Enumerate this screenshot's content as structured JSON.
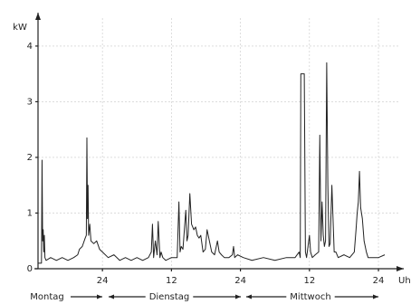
{
  "chart_data": {
    "type": "line",
    "y_label": "kW",
    "x_label": "Uhr",
    "day_labels": [
      "Montag",
      "Dienstag",
      "Mittwoch"
    ],
    "xlim": [
      12.8,
      76.4
    ],
    "ylim": [
      0,
      4.6
    ],
    "xticks": [
      24,
      {
        "value": 36,
        "label": "12"
      },
      {
        "value": 48,
        "label": "24"
      },
      {
        "value": 60,
        "label": "12"
      },
      {
        "value": 72,
        "label": "24"
      }
    ],
    "yticks": [
      0,
      1,
      2,
      3,
      4
    ],
    "grid": true,
    "color": "#222222",
    "x": [
      12.8,
      13.4,
      13.5,
      13.6,
      13.7,
      13.8,
      13.9,
      14.0,
      14.2,
      15.0,
      16.0,
      17.0,
      18.0,
      19.0,
      19.7,
      20.0,
      20.5,
      21.0,
      21.2,
      21.3,
      21.4,
      21.5,
      21.6,
      21.8,
      22.0,
      22.5,
      23.0,
      23.5,
      24.0,
      25.0,
      26.0,
      27.0,
      28.0,
      29.0,
      30.0,
      31.0,
      32.0,
      32.5,
      32.7,
      32.9,
      33.2,
      33.5,
      33.7,
      34.0,
      34.2,
      34.5,
      35.0,
      36.0,
      37.0,
      37.3,
      37.5,
      37.7,
      38.0,
      38.5,
      38.7,
      38.9,
      39.2,
      39.5,
      39.7,
      39.9,
      40.2,
      40.5,
      40.8,
      41.1,
      41.5,
      41.9,
      42.2,
      42.6,
      43.0,
      43.5,
      44.0,
      44.3,
      44.7,
      45.2,
      46.0,
      46.6,
      46.8,
      47.0,
      47.5,
      48.5,
      50.0,
      52.0,
      54.0,
      56.0,
      57.5,
      58.2,
      58.4,
      58.5,
      58.7,
      59.1,
      59.3,
      59.5,
      60.0,
      60.2,
      60.5,
      61.0,
      61.6,
      61.8,
      62.0,
      62.2,
      62.4,
      62.6,
      62.8,
      63.0,
      63.2,
      63.4,
      63.6,
      63.9,
      64.3,
      64.6,
      65.0,
      66.0,
      67.0,
      67.8,
      68.1,
      68.3,
      68.5,
      68.7,
      68.9,
      69.2,
      69.5,
      69.9,
      70.2,
      71.0,
      72.0,
      73.1
    ],
    "values": [
      0.1,
      0.1,
      1.95,
      0.5,
      0.7,
      0.3,
      0.6,
      0.2,
      0.15,
      0.2,
      0.15,
      0.2,
      0.15,
      0.2,
      0.25,
      0.35,
      0.4,
      0.55,
      0.6,
      2.35,
      0.9,
      1.5,
      0.6,
      0.8,
      0.5,
      0.45,
      0.5,
      0.35,
      0.3,
      0.2,
      0.25,
      0.15,
      0.2,
      0.15,
      0.2,
      0.15,
      0.2,
      0.3,
      0.8,
      0.2,
      0.5,
      0.25,
      0.85,
      0.2,
      0.3,
      0.2,
      0.15,
      0.2,
      0.2,
      1.2,
      0.3,
      0.4,
      0.35,
      1.05,
      0.5,
      0.6,
      1.35,
      0.8,
      0.75,
      0.7,
      0.75,
      0.6,
      0.55,
      0.6,
      0.3,
      0.35,
      0.7,
      0.5,
      0.3,
      0.25,
      0.5,
      0.3,
      0.25,
      0.2,
      0.2,
      0.25,
      0.4,
      0.2,
      0.25,
      0.2,
      0.15,
      0.2,
      0.15,
      0.2,
      0.2,
      0.3,
      0.2,
      3.5,
      3.5,
      3.5,
      0.3,
      0.2,
      0.6,
      0.3,
      0.2,
      0.25,
      0.3,
      2.4,
      0.5,
      1.2,
      0.6,
      0.4,
      0.5,
      3.7,
      1.5,
      0.4,
      0.45,
      1.5,
      0.3,
      0.3,
      0.2,
      0.25,
      0.2,
      0.3,
      0.7,
      1.0,
      1.2,
      1.75,
      1.1,
      0.9,
      0.5,
      0.3,
      0.2,
      0.2,
      0.2,
      0.25
    ]
  }
}
